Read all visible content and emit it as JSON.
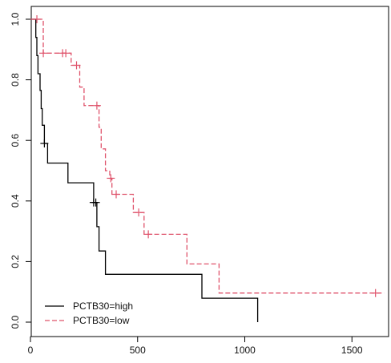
{
  "chart_data": {
    "type": "line",
    "subtype": "kaplan-meier survival curve",
    "title": "",
    "xlabel": "",
    "ylabel": "",
    "xlim": [
      0,
      1700
    ],
    "ylim": [
      0,
      1.0
    ],
    "x_ticks": [
      0,
      500,
      1000,
      1500
    ],
    "x_tick_labels": [
      "0",
      "500",
      "1000",
      "1500"
    ],
    "y_ticks": [
      0.0,
      0.2,
      0.4,
      0.6,
      0.8,
      1.0
    ],
    "y_tick_labels": [
      "0.0",
      "0.2",
      "0.4",
      "0.6",
      "0.8",
      "1.0"
    ],
    "grid": false,
    "legend_position": "bottom-left",
    "series": [
      {
        "name": "PCTB30=high",
        "color": "#000000",
        "line_style": "solid",
        "steps": [
          [
            0,
            1.0
          ],
          [
            25,
            1.0
          ],
          [
            25,
            0.94
          ],
          [
            30,
            0.94
          ],
          [
            30,
            0.88
          ],
          [
            35,
            0.88
          ],
          [
            35,
            0.82
          ],
          [
            45,
            0.82
          ],
          [
            45,
            0.765
          ],
          [
            50,
            0.765
          ],
          [
            50,
            0.705
          ],
          [
            55,
            0.705
          ],
          [
            55,
            0.65
          ],
          [
            65,
            0.65
          ],
          [
            65,
            0.59
          ],
          [
            80,
            0.59
          ],
          [
            80,
            0.525
          ],
          [
            175,
            0.525
          ],
          [
            175,
            0.46
          ],
          [
            295,
            0.46
          ],
          [
            295,
            0.395
          ],
          [
            310,
            0.395
          ],
          [
            310,
            0.315
          ],
          [
            320,
            0.315
          ],
          [
            320,
            0.235
          ],
          [
            350,
            0.235
          ],
          [
            350,
            0.158
          ],
          [
            800,
            0.158
          ],
          [
            800,
            0.079
          ],
          [
            1060,
            0.079
          ],
          [
            1060,
            0.0
          ]
        ],
        "censor_marks": [
          [
            65,
            0.59
          ],
          [
            295,
            0.395
          ],
          [
            305,
            0.395
          ]
        ]
      },
      {
        "name": "PCTB30=low",
        "color": "#df536b",
        "line_style": "dashed",
        "steps": [
          [
            0,
            1.0
          ],
          [
            60,
            1.0
          ],
          [
            60,
            0.888
          ],
          [
            190,
            0.888
          ],
          [
            190,
            0.848
          ],
          [
            230,
            0.848
          ],
          [
            230,
            0.776
          ],
          [
            250,
            0.776
          ],
          [
            250,
            0.715
          ],
          [
            320,
            0.715
          ],
          [
            320,
            0.643
          ],
          [
            330,
            0.643
          ],
          [
            330,
            0.572
          ],
          [
            350,
            0.572
          ],
          [
            350,
            0.5
          ],
          [
            370,
            0.5
          ],
          [
            370,
            0.475
          ],
          [
            380,
            0.475
          ],
          [
            380,
            0.422
          ],
          [
            480,
            0.422
          ],
          [
            480,
            0.362
          ],
          [
            530,
            0.362
          ],
          [
            530,
            0.29
          ],
          [
            730,
            0.29
          ],
          [
            730,
            0.192
          ],
          [
            880,
            0.192
          ],
          [
            880,
            0.096
          ],
          [
            1650,
            0.096
          ]
        ],
        "censor_marks": [
          [
            30,
            1.0
          ],
          [
            60,
            0.888
          ],
          [
            150,
            0.888
          ],
          [
            165,
            0.888
          ],
          [
            215,
            0.848
          ],
          [
            310,
            0.715
          ],
          [
            375,
            0.475
          ],
          [
            400,
            0.422
          ],
          [
            505,
            0.362
          ],
          [
            550,
            0.29
          ],
          [
            1610,
            0.096
          ]
        ]
      }
    ]
  }
}
